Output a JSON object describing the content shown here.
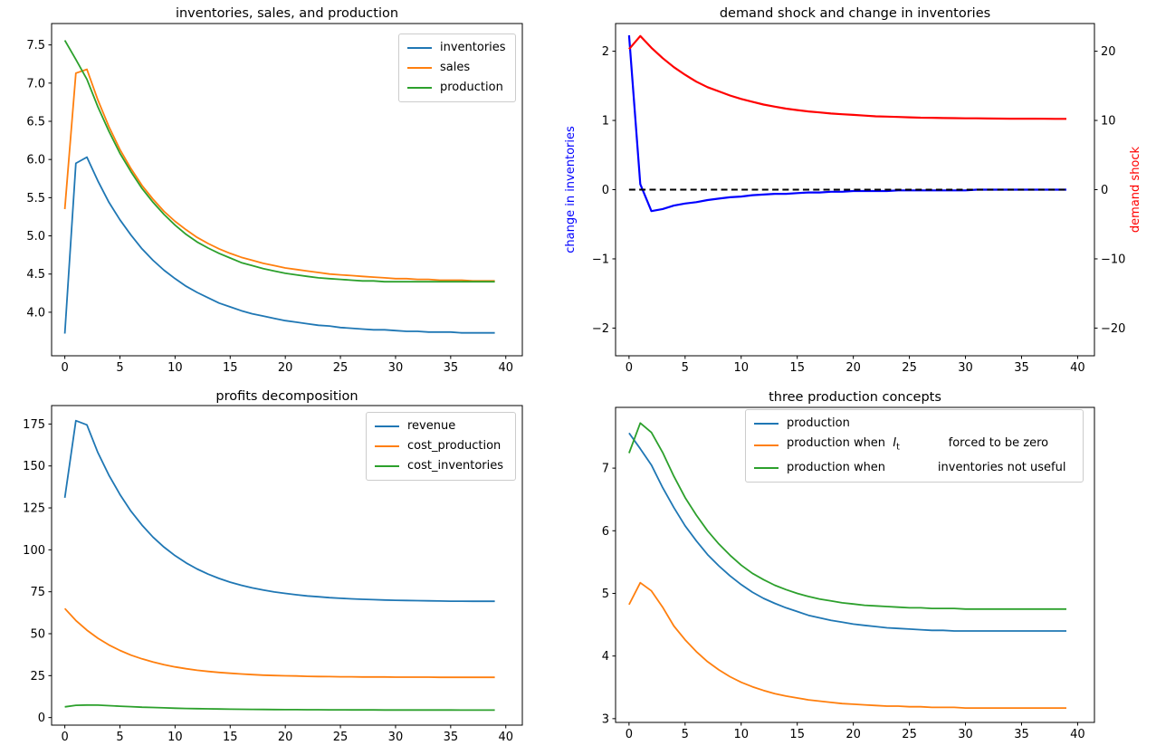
{
  "figure": {
    "background": "#ffffff"
  },
  "colors": {
    "tab_blue": "#1f77b4",
    "tab_orange": "#ff7f0e",
    "tab_green": "#2ca02c",
    "pure_blue": "#0000ff",
    "pure_red": "#ff0000",
    "black": "#000000",
    "legend_border": "#cccccc"
  },
  "chart_data": [
    {
      "id": "inventories-sales-production",
      "type": "line",
      "title": "inventories, sales, and production",
      "grid": false,
      "xlabel": "",
      "ylabel": "",
      "xlim": [
        -1.2,
        41.5
      ],
      "ylim": [
        3.43,
        7.78
      ],
      "xticks": [
        0,
        5,
        10,
        15,
        20,
        25,
        30,
        35,
        40
      ],
      "yticks": [
        4.0,
        4.5,
        5.0,
        5.5,
        6.0,
        6.5,
        7.0,
        7.5
      ],
      "ytick_decimals": 1,
      "x": [
        0,
        1,
        2,
        3,
        4,
        5,
        6,
        7,
        8,
        9,
        10,
        11,
        12,
        13,
        14,
        15,
        16,
        17,
        18,
        19,
        20,
        21,
        22,
        23,
        24,
        25,
        26,
        27,
        28,
        29,
        30,
        31,
        32,
        33,
        34,
        35,
        36,
        37,
        38,
        39
      ],
      "series": [
        {
          "name": "inventories",
          "color": "#1f77b4",
          "values": [
            3.72,
            5.95,
            6.03,
            5.72,
            5.44,
            5.21,
            5.01,
            4.83,
            4.68,
            4.55,
            4.44,
            4.34,
            4.26,
            4.19,
            4.12,
            4.07,
            4.02,
            3.98,
            3.95,
            3.92,
            3.89,
            3.87,
            3.85,
            3.83,
            3.82,
            3.8,
            3.79,
            3.78,
            3.77,
            3.77,
            3.76,
            3.75,
            3.75,
            3.74,
            3.74,
            3.74,
            3.73,
            3.73,
            3.73,
            3.73
          ]
        },
        {
          "name": "sales",
          "color": "#ff7f0e",
          "values": [
            5.35,
            7.13,
            7.18,
            6.78,
            6.43,
            6.13,
            5.88,
            5.66,
            5.48,
            5.32,
            5.19,
            5.08,
            4.98,
            4.9,
            4.83,
            4.77,
            4.72,
            4.68,
            4.64,
            4.61,
            4.58,
            4.56,
            4.54,
            4.52,
            4.5,
            4.49,
            4.48,
            4.47,
            4.46,
            4.45,
            4.44,
            4.44,
            4.43,
            4.43,
            4.42,
            4.42,
            4.42,
            4.41,
            4.41,
            4.41
          ]
        },
        {
          "name": "production",
          "color": "#2ca02c",
          "values": [
            7.56,
            7.31,
            7.05,
            6.69,
            6.37,
            6.08,
            5.84,
            5.62,
            5.44,
            5.28,
            5.14,
            5.02,
            4.92,
            4.84,
            4.77,
            4.71,
            4.65,
            4.61,
            4.57,
            4.54,
            4.51,
            4.49,
            4.47,
            4.45,
            4.44,
            4.43,
            4.42,
            4.41,
            4.41,
            4.4,
            4.4,
            4.4,
            4.4,
            4.4,
            4.4,
            4.4,
            4.4,
            4.4,
            4.4,
            4.4
          ]
        }
      ],
      "legend": {
        "position": "upper right",
        "entries": [
          {
            "label": "inventories",
            "color": "#1f77b4"
          },
          {
            "label": "sales",
            "color": "#ff7f0e"
          },
          {
            "label": "production",
            "color": "#2ca02c"
          }
        ]
      }
    },
    {
      "id": "demand-shock-change-in-inventories",
      "type": "line",
      "title": "demand shock and change in inventories",
      "grid": false,
      "xlim": [
        -1.2,
        41.5
      ],
      "ylim": [
        -2.4,
        2.4
      ],
      "y2lim": [
        -24,
        24
      ],
      "xticks": [
        0,
        5,
        10,
        15,
        20,
        25,
        30,
        35,
        40
      ],
      "yticks": [
        -2,
        -1,
        0,
        1,
        2
      ],
      "y2ticks": [
        -20,
        -10,
        0,
        10,
        20
      ],
      "ylabel_left": {
        "text": "change in inventories",
        "color": "#0000ff"
      },
      "ylabel_right": {
        "text": "demand shock",
        "color": "#ff0000"
      },
      "hline": {
        "y": 0,
        "color": "#000000",
        "style": "dashed"
      },
      "x": [
        0,
        1,
        2,
        3,
        4,
        5,
        6,
        7,
        8,
        9,
        10,
        11,
        12,
        13,
        14,
        15,
        16,
        17,
        18,
        19,
        20,
        21,
        22,
        23,
        24,
        25,
        26,
        27,
        28,
        29,
        30,
        31,
        32,
        33,
        34,
        35,
        36,
        37,
        38,
        39
      ],
      "series": [
        {
          "name": "change in inventories",
          "axis": "left",
          "color": "#0000ff",
          "values": [
            2.23,
            0.08,
            -0.31,
            -0.28,
            -0.23,
            -0.2,
            -0.18,
            -0.15,
            -0.13,
            -0.11,
            -0.1,
            -0.08,
            -0.07,
            -0.06,
            -0.06,
            -0.05,
            -0.04,
            -0.04,
            -0.03,
            -0.03,
            -0.02,
            -0.02,
            -0.02,
            -0.02,
            -0.01,
            -0.01,
            -0.01,
            -0.01,
            -0.01,
            -0.01,
            -0.01,
            0.0,
            0.0,
            0.0,
            0.0,
            0.0,
            0.0,
            0.0,
            0.0,
            0.0
          ]
        },
        {
          "name": "demand shock",
          "axis": "right",
          "color": "#ff0000",
          "values": [
            20.3,
            22.2,
            20.5,
            19.0,
            17.7,
            16.6,
            15.6,
            14.8,
            14.2,
            13.6,
            13.1,
            12.7,
            12.3,
            12.0,
            11.7,
            11.5,
            11.3,
            11.15,
            11.0,
            10.9,
            10.8,
            10.7,
            10.6,
            10.55,
            10.5,
            10.45,
            10.4,
            10.38,
            10.35,
            10.33,
            10.3,
            10.3,
            10.28,
            10.27,
            10.26,
            10.25,
            10.25,
            10.24,
            10.23,
            10.23
          ]
        }
      ]
    },
    {
      "id": "profits-decomposition",
      "type": "line",
      "title": "profits decomposition",
      "grid": false,
      "xlim": [
        -1.2,
        41.5
      ],
      "ylim": [
        -4.5,
        186
      ],
      "xticks": [
        0,
        5,
        10,
        15,
        20,
        25,
        30,
        35,
        40
      ],
      "yticks": [
        0,
        25,
        50,
        75,
        100,
        125,
        150,
        175
      ],
      "x": [
        0,
        1,
        2,
        3,
        4,
        5,
        6,
        7,
        8,
        9,
        10,
        11,
        12,
        13,
        14,
        15,
        16,
        17,
        18,
        19,
        20,
        21,
        22,
        23,
        24,
        25,
        26,
        27,
        28,
        29,
        30,
        31,
        32,
        33,
        34,
        35,
        36,
        37,
        38,
        39
      ],
      "series": [
        {
          "name": "revenue",
          "color": "#1f77b4",
          "values": [
            131,
            177,
            174.5,
            158,
            144.5,
            133,
            123,
            114.7,
            107.6,
            101.6,
            96.5,
            92.2,
            88.6,
            85.5,
            82.9,
            80.7,
            78.9,
            77.3,
            76.0,
            74.9,
            74.0,
            73.2,
            72.5,
            72.0,
            71.5,
            71.1,
            70.8,
            70.5,
            70.3,
            70.1,
            69.9,
            69.8,
            69.7,
            69.6,
            69.5,
            69.4,
            69.4,
            69.3,
            69.3,
            69.3
          ]
        },
        {
          "name": "cost_production",
          "color": "#ff7f0e",
          "values": [
            65,
            57.9,
            52.1,
            47.3,
            43.3,
            40.0,
            37.2,
            35.0,
            33.1,
            31.5,
            30.2,
            29.1,
            28.2,
            27.5,
            26.9,
            26.4,
            26.0,
            25.6,
            25.3,
            25.1,
            24.9,
            24.8,
            24.6,
            24.5,
            24.4,
            24.3,
            24.3,
            24.2,
            24.2,
            24.2,
            24.1,
            24.1,
            24.1,
            24.1,
            24.0,
            24.0,
            24.0,
            24.0,
            24.0,
            24.0
          ]
        },
        {
          "name": "cost_inventories",
          "color": "#2ca02c",
          "values": [
            6.4,
            7.3,
            7.5,
            7.4,
            7.1,
            6.8,
            6.5,
            6.2,
            6.0,
            5.8,
            5.6,
            5.45,
            5.3,
            5.2,
            5.1,
            5.0,
            4.95,
            4.9,
            4.85,
            4.8,
            4.75,
            4.72,
            4.68,
            4.65,
            4.63,
            4.6,
            4.58,
            4.56,
            4.55,
            4.53,
            4.52,
            4.51,
            4.5,
            4.5,
            4.49,
            4.49,
            4.48,
            4.48,
            4.48,
            4.47
          ]
        }
      ],
      "legend": {
        "position": "upper right",
        "entries": [
          {
            "label": "revenue",
            "color": "#1f77b4"
          },
          {
            "label": "cost_production",
            "color": "#ff7f0e"
          },
          {
            "label": "cost_inventories",
            "color": "#2ca02c"
          }
        ]
      }
    },
    {
      "id": "three-production-concepts",
      "type": "line",
      "title": "three production concepts",
      "grid": false,
      "xlim": [
        -1.2,
        41.5
      ],
      "ylim": [
        2.94,
        7.97
      ],
      "xticks": [
        0,
        5,
        10,
        15,
        20,
        25,
        30,
        35,
        40
      ],
      "yticks": [
        3,
        4,
        5,
        6,
        7
      ],
      "x": [
        0,
        1,
        2,
        3,
        4,
        5,
        6,
        7,
        8,
        9,
        10,
        11,
        12,
        13,
        14,
        15,
        16,
        17,
        18,
        19,
        20,
        21,
        22,
        23,
        24,
        25,
        26,
        27,
        28,
        29,
        30,
        31,
        32,
        33,
        34,
        35,
        36,
        37,
        38,
        39
      ],
      "series": [
        {
          "name": "production",
          "color": "#1f77b4",
          "values": [
            7.56,
            7.31,
            7.05,
            6.69,
            6.37,
            6.08,
            5.84,
            5.62,
            5.44,
            5.28,
            5.14,
            5.02,
            4.92,
            4.84,
            4.77,
            4.71,
            4.65,
            4.61,
            4.57,
            4.54,
            4.51,
            4.49,
            4.47,
            4.45,
            4.44,
            4.43,
            4.42,
            4.41,
            4.41,
            4.4,
            4.4,
            4.4,
            4.4,
            4.4,
            4.4,
            4.4,
            4.4,
            4.4,
            4.4,
            4.4
          ]
        },
        {
          "name": "production when I_t forced to be zero",
          "color": "#ff7f0e",
          "values": [
            4.82,
            5.17,
            5.04,
            4.78,
            4.48,
            4.26,
            4.07,
            3.91,
            3.78,
            3.67,
            3.58,
            3.51,
            3.45,
            3.4,
            3.36,
            3.33,
            3.3,
            3.28,
            3.26,
            3.24,
            3.23,
            3.22,
            3.21,
            3.2,
            3.2,
            3.19,
            3.19,
            3.18,
            3.18,
            3.18,
            3.17,
            3.17,
            3.17,
            3.17,
            3.17,
            3.17,
            3.17,
            3.17,
            3.17,
            3.17
          ]
        },
        {
          "name": "production when inventories not useful",
          "color": "#2ca02c",
          "values": [
            7.24,
            7.72,
            7.57,
            7.25,
            6.87,
            6.53,
            6.25,
            6.0,
            5.79,
            5.61,
            5.45,
            5.32,
            5.22,
            5.13,
            5.06,
            5.0,
            4.95,
            4.91,
            4.88,
            4.85,
            4.83,
            4.81,
            4.8,
            4.79,
            4.78,
            4.77,
            4.77,
            4.76,
            4.76,
            4.76,
            4.75,
            4.75,
            4.75,
            4.75,
            4.75,
            4.75,
            4.75,
            4.75,
            4.75,
            4.75
          ]
        }
      ],
      "legend": {
        "position": "upper right",
        "entries": [
          {
            "label": "production",
            "color": "#1f77b4"
          },
          {
            "label": "production when  $I_t$             forced to be zero",
            "color": "#ff7f0e"
          },
          {
            "label": "production when              inventories not useful",
            "color": "#2ca02c"
          }
        ]
      }
    }
  ]
}
